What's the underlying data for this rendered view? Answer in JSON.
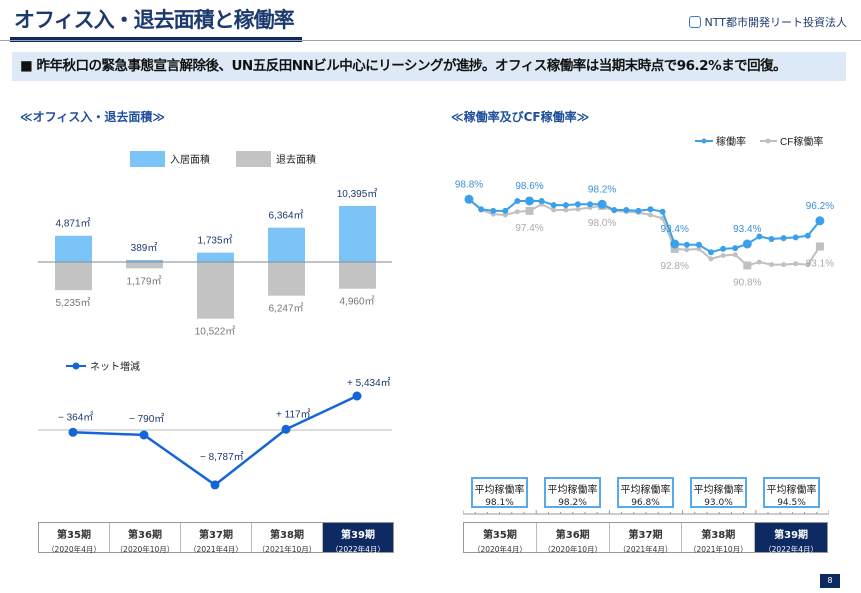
{
  "header": {
    "title": "オフィス入・退去面積と稼働率",
    "logo_text": "NTT都市開発リート投資法人"
  },
  "banner": "■ 昨年秋口の緊急事態宣言解除後、UN五反田NNビル中心にリーシングが進捗。オフィス稼働率は当期末時点で96.2%まで回復。",
  "left_section": {
    "heading": "≪オフィス入・退去面積≫"
  },
  "right_section": {
    "heading": "≪稼働率及びCF稼働率≫"
  },
  "periods": [
    {
      "period": "第35期",
      "date": "（2020年4月）"
    },
    {
      "period": "第36期",
      "date": "（2020年10月）"
    },
    {
      "period": "第37期",
      "date": "（2021年4月）"
    },
    {
      "period": "第38期",
      "date": "（2021年10月）"
    },
    {
      "period": "第39期",
      "date": "（2022年4月）",
      "current": true
    }
  ],
  "avg_label": "平均稼働率",
  "avg_rates": [
    "98.1%",
    "98.2%",
    "96.8%",
    "93.0%",
    "94.5%"
  ],
  "page_number": "8",
  "chart_data": [
    {
      "type": "bar",
      "title": "",
      "categories": [
        "第35期",
        "第36期",
        "第37期",
        "第38期",
        "第39期"
      ],
      "series": [
        {
          "name": "入居面積",
          "values": [
            4871,
            389,
            1735,
            6364,
            10395
          ],
          "labels": [
            "4,871㎡",
            "389㎡",
            "1,735㎡",
            "6,364㎡",
            "10,395㎡"
          ],
          "color": "#7cc4f7"
        },
        {
          "name": "退去面積",
          "values": [
            -5235,
            -1179,
            -10522,
            -6247,
            -4960
          ],
          "labels": [
            "5,235㎡",
            "1,179㎡",
            "10,522㎡",
            "6,247㎡",
            "4,960㎡"
          ],
          "color": "#c4c4c4"
        }
      ]
    },
    {
      "type": "line",
      "title": "",
      "categories": [
        "第35期",
        "第36期",
        "第37期",
        "第38期",
        "第39期"
      ],
      "series": [
        {
          "name": "ネット増減",
          "values": [
            -364,
            -790,
            -8787,
            117,
            5434
          ],
          "labels": [
            "− 364㎡",
            "− 790㎡",
            "− 8,787㎡",
            "+ 117㎡",
            "+ 5,434㎡"
          ],
          "color": "#1565d8"
        }
      ]
    },
    {
      "type": "line",
      "title": "",
      "x_unit": "month",
      "ylim": [
        89,
        100
      ],
      "series": [
        {
          "name": "稼働率",
          "color": "#3aa0ea",
          "values": [
            98.8,
            97.6,
            97.4,
            97.4,
            98.6,
            98.6,
            98.6,
            98.1,
            98.1,
            98.2,
            98.2,
            98.2,
            97.5,
            97.5,
            97.4,
            97.6,
            97.3,
            93.4,
            93.3,
            93.3,
            92.4,
            92.8,
            92.9,
            93.4,
            94.3,
            94.0,
            94.1,
            94.2,
            94.4,
            96.2
          ],
          "labeled": [
            {
              "index": 0,
              "label": "98.8%"
            },
            {
              "index": 5,
              "label": "98.6%"
            },
            {
              "index": 11,
              "label": "98.2%"
            },
            {
              "index": 17,
              "label": "93.4%"
            },
            {
              "index": 23,
              "label": "93.4%"
            },
            {
              "index": 29,
              "label": "96.2%"
            }
          ]
        },
        {
          "name": "CF稼働率",
          "color": "#c0c0c0",
          "values": [
            98.8,
            97.5,
            97.0,
            96.9,
            97.3,
            97.4,
            98.2,
            97.5,
            97.5,
            97.6,
            97.8,
            98.0,
            97.4,
            97.3,
            97.2,
            96.9,
            96.5,
            92.8,
            92.7,
            92.8,
            91.6,
            92.0,
            92.1,
            90.8,
            91.2,
            90.9,
            90.9,
            91.0,
            90.9,
            93.1
          ],
          "labeled": [
            {
              "index": 5,
              "label": "97.4%"
            },
            {
              "index": 11,
              "label": "98.0%"
            },
            {
              "index": 17,
              "label": "92.8%"
            },
            {
              "index": 23,
              "label": "90.8%"
            },
            {
              "index": 29,
              "label": "93.1%"
            }
          ]
        }
      ]
    }
  ]
}
